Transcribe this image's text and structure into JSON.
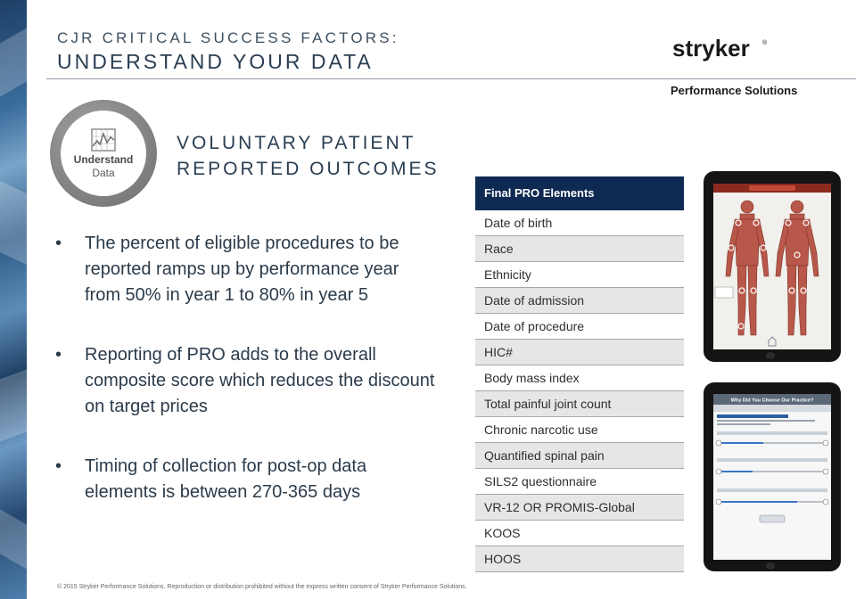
{
  "header": {
    "supertitle": "CJR CRITICAL SUCCESS FACTORS:",
    "title": "UNDERSTAND YOUR DATA"
  },
  "logo": {
    "wordmark": "stryker",
    "registered": "®",
    "tagline": "Performance Solutions"
  },
  "badge": {
    "line1": "Understand",
    "line2": "Data",
    "icon": "line-chart-icon"
  },
  "subheading": {
    "line1": "VOLUNTARY PATIENT",
    "line2": "REPORTED OUTCOMES"
  },
  "bullets": [
    "The percent of eligible procedures to be reported ramps up by performance year from 50% in year 1 to 80% in year 5",
    "Reporting of PRO adds to the overall composite score which reduces the discount on target prices",
    "Timing of collection for post-op data elements is between 270-365 days"
  ],
  "pro_table": {
    "header": "Final PRO Elements",
    "rows": [
      "Date of birth",
      "Race",
      "Ethnicity",
      "Date of admission",
      "Date of procedure",
      "HIC#",
      "Body mass index",
      "Total painful joint count",
      "Chronic narcotic use",
      "Quantified spinal pain",
      "SILS2 questionnaire",
      "VR-12 OR PROMIS-Global",
      "KOOS",
      "HOOS"
    ]
  },
  "tablet_survey": {
    "title": "Why Did You Choose Our Practice?"
  },
  "footer": "© 2015 Stryker Performance Solutions. Reproduction or distribution prohibited without the express written consent of Stryker Performance Solutions.",
  "colors": {
    "table_header": "#0e2a52",
    "table_alt_row": "#e6e6e6",
    "title_text": "#2a3e52",
    "ring_gray": "#8a8a8a",
    "strip_blue": "#2e5b88"
  }
}
